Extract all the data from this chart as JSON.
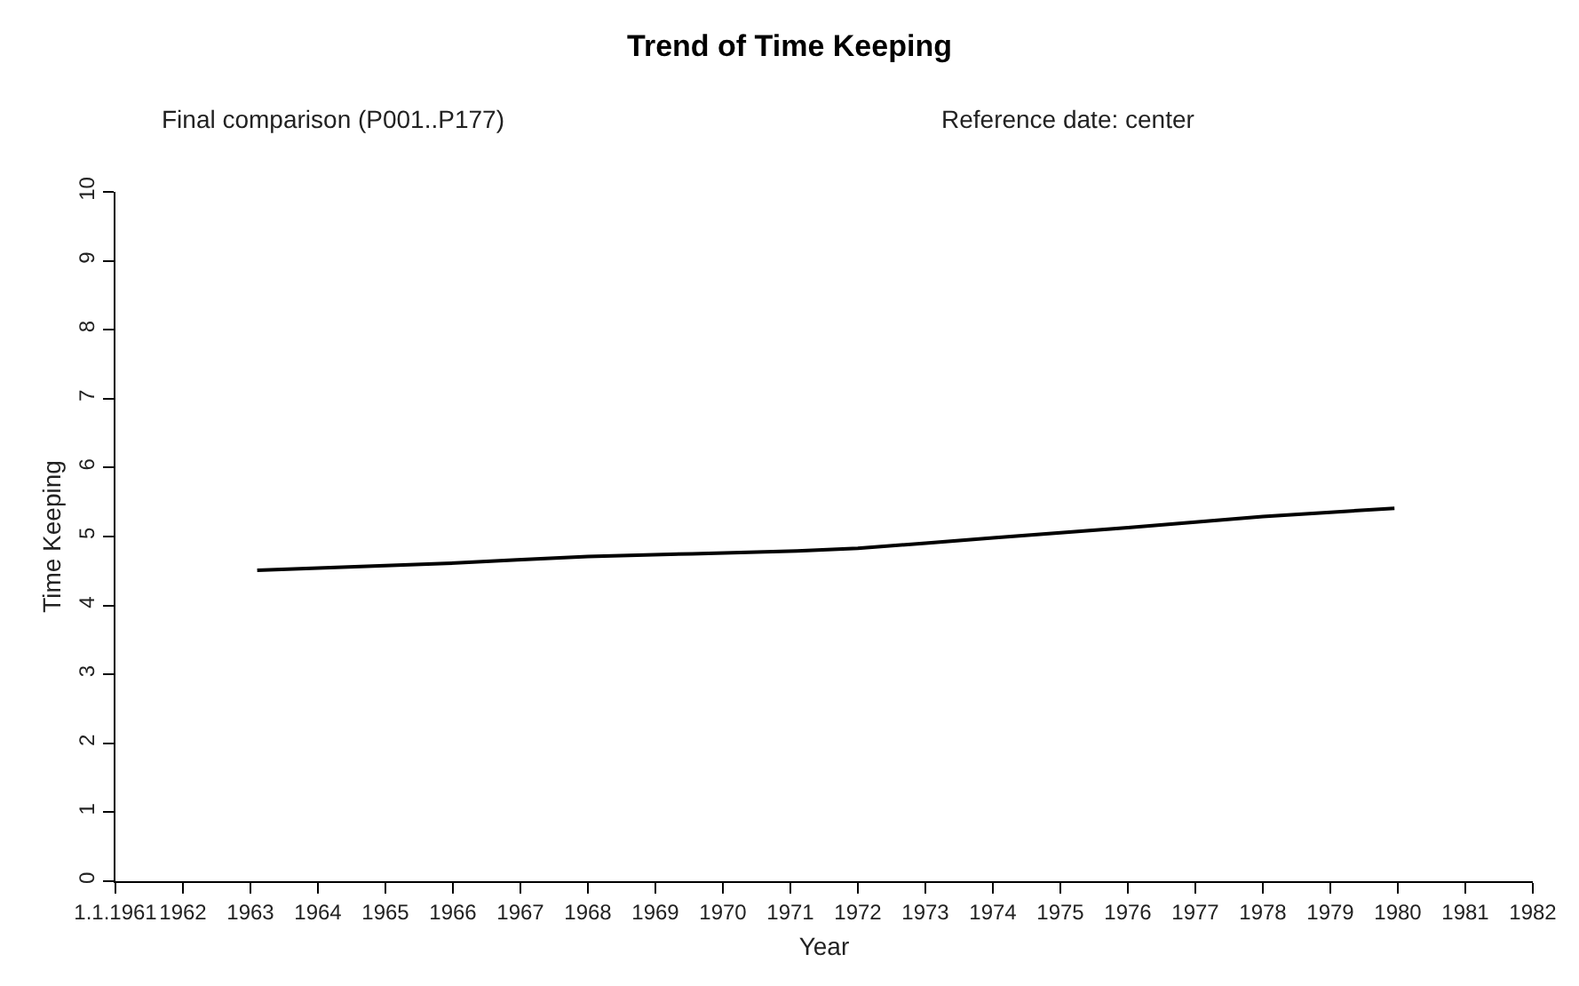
{
  "chart_data": {
    "type": "line",
    "title": "Trend of Time Keeping",
    "subtitle": "Final comparison (P001..P177)",
    "annotations": [
      "Reference date: center"
    ],
    "xlabel": "Year",
    "ylabel": "Time Keeping",
    "x": [
      1963.1,
      1965.9,
      1968.0,
      1971.1,
      1972.0,
      1974.0,
      1976.0,
      1978.0,
      1979.95
    ],
    "series": [
      {
        "color": "#000000",
        "values": [
          4.51,
          4.61,
          4.71,
          4.79,
          4.83,
          4.98,
          5.13,
          5.29,
          5.41
        ]
      }
    ],
    "xlim": [
      1961,
      1982
    ],
    "xticks": [
      {
        "value": 1961,
        "label": "1.1.1961"
      },
      1962,
      1963,
      1964,
      1965,
      1966,
      1967,
      1968,
      1969,
      1970,
      1971,
      1972,
      1973,
      1974,
      1975,
      1976,
      1977,
      1978,
      1979,
      1980,
      1981,
      1982
    ],
    "ylim": [
      0,
      10
    ],
    "yticks": [
      0,
      1,
      2,
      3,
      4,
      5,
      6,
      7,
      8,
      9,
      10
    ],
    "marker": "none",
    "line_style": "solid"
  }
}
